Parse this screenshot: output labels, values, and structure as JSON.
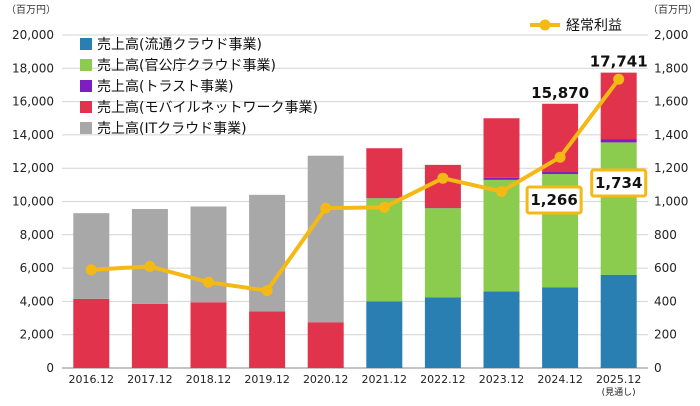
{
  "chart_data": {
    "type": "bar",
    "stacked": true,
    "left_unit": "（百万円）",
    "right_unit": "（百万円）",
    "categories": [
      "2016.12",
      "2017.12",
      "2018.12",
      "2019.12",
      "2020.12",
      "2021.12",
      "2022.12",
      "2023.12",
      "2024.12",
      "2025.12"
    ],
    "category_sublabels": [
      "",
      "",
      "",
      "",
      "",
      "",
      "",
      "",
      "",
      "(見通し)"
    ],
    "y_left": {
      "min": 0,
      "max": 20000,
      "ticks": [
        "0",
        "2,000",
        "4,000",
        "6,000",
        "8,000",
        "10,000",
        "12,000",
        "14,000",
        "16,000",
        "18,000",
        "20,000"
      ]
    },
    "y_right": {
      "min": 0,
      "max": 2000,
      "ticks": [
        "0",
        "200",
        "400",
        "600",
        "800",
        "1,000",
        "1,200",
        "1,400",
        "1,600",
        "1,800",
        "2,000"
      ]
    },
    "series": [
      {
        "name": "売上高(流通クラウド事業)",
        "color": "#2a7fb2",
        "values": [
          0,
          0,
          0,
          0,
          0,
          4000,
          4250,
          4600,
          4850,
          5600
        ]
      },
      {
        "name": "売上高(官公庁クラウド事業)",
        "color": "#8bcc4e",
        "values": [
          0,
          0,
          0,
          0,
          0,
          6200,
          5350,
          6700,
          6800,
          7950
        ]
      },
      {
        "name": "売上高(トラスト事業)",
        "color": "#7d1ec0",
        "values": [
          0,
          0,
          0,
          0,
          0,
          50,
          50,
          120,
          120,
          200
        ]
      },
      {
        "name": "売上高(モバイルネットワーク事業)",
        "color": "#e1344c",
        "values": [
          4150,
          3850,
          3950,
          3400,
          2750,
          2950,
          2550,
          3580,
          4100,
          3991
        ]
      },
      {
        "name": "売上高(ITクラウド事業)",
        "color": "#a8a8a8",
        "values": [
          5150,
          5700,
          5750,
          7000,
          10000,
          0,
          0,
          0,
          0,
          0
        ]
      }
    ],
    "totals_labels": [
      {
        "category": "2024.12",
        "text": "15,870"
      },
      {
        "category": "2025.12",
        "text": "17,741"
      }
    ],
    "line_series": {
      "name": "経常利益",
      "color": "#f5b915",
      "axis": "right",
      "values": [
        590,
        610,
        515,
        465,
        960,
        965,
        1140,
        1060,
        1266,
        1734
      ]
    },
    "boxed_labels": [
      {
        "category": "2024.12",
        "text": "1,266"
      },
      {
        "category": "2025.12",
        "text": "1,734"
      }
    ]
  }
}
